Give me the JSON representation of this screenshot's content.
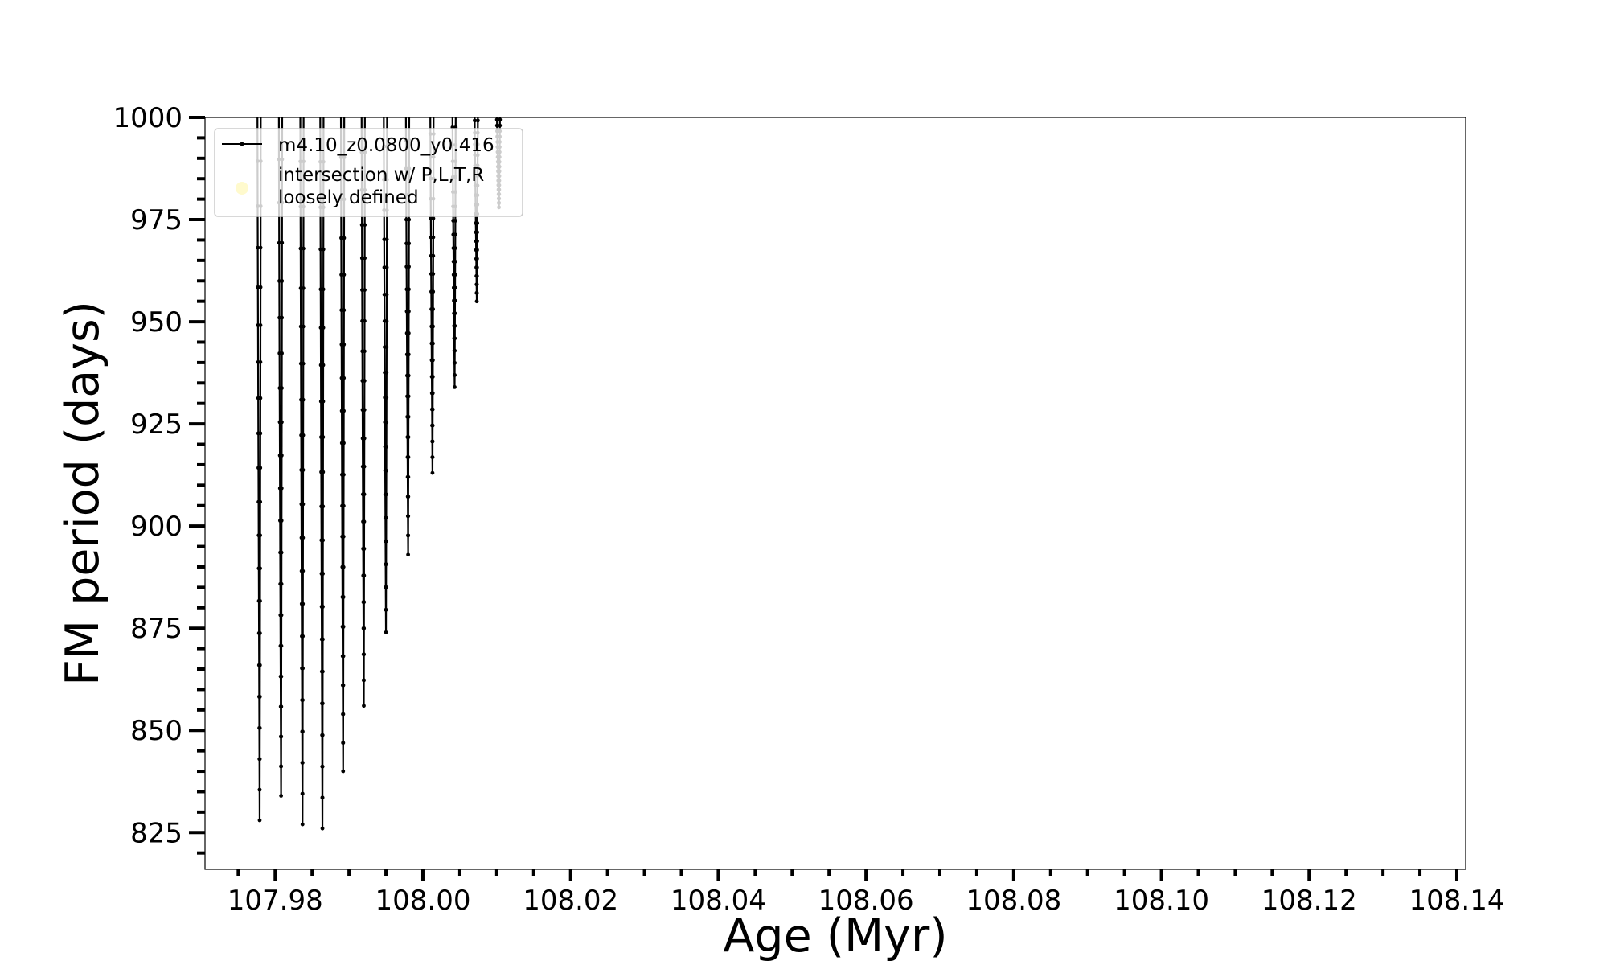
{
  "chart_data": {
    "type": "line",
    "xlabel": "Age (Myr)",
    "ylabel": "FM period (days)",
    "xlim": [
      107.9705,
      108.1412
    ],
    "ylim": [
      816.0,
      1000.0
    ],
    "x_major_ticks": [
      107.98,
      108.0,
      108.02,
      108.04,
      108.06,
      108.08,
      108.1,
      108.12,
      108.14
    ],
    "x_tick_labels": [
      "107.98",
      "108.00",
      "108.02",
      "108.04",
      "108.06",
      "108.08",
      "108.10",
      "108.12",
      "108.14"
    ],
    "x_minor_step": 0.005,
    "y_major_ticks": [
      825,
      850,
      875,
      900,
      925,
      950,
      975,
      1000
    ],
    "y_tick_labels": [
      "825",
      "850",
      "875",
      "900",
      "925",
      "950",
      "975",
      "1000"
    ],
    "y_minor_step": 5,
    "grid": false,
    "legend_position": "top-left",
    "legend": [
      {
        "label": "m4.10_z0.0800_y0.416",
        "marker": "line-dot",
        "color": "#000000"
      },
      {
        "label": "intersection w/ P,L,T,R\nloosely defined",
        "marker": "circle",
        "color": "#fffacd"
      }
    ],
    "series": [
      {
        "name": "m4.10_z0.0800_y0.416",
        "color": "#000000",
        "dips": [
          {
            "x": 107.9779,
            "min": 828
          },
          {
            "x": 107.9808,
            "min": 834
          },
          {
            "x": 107.9837,
            "min": 827
          },
          {
            "x": 107.9864,
            "min": 826
          },
          {
            "x": 107.9892,
            "min": 840
          },
          {
            "x": 107.992,
            "min": 856
          },
          {
            "x": 107.995,
            "min": 874
          },
          {
            "x": 107.998,
            "min": 893
          },
          {
            "x": 108.0013,
            "min": 913
          },
          {
            "x": 108.0043,
            "min": 934
          },
          {
            "x": 108.0073,
            "min": 955
          },
          {
            "x": 108.0103,
            "min": 978
          }
        ]
      }
    ]
  }
}
